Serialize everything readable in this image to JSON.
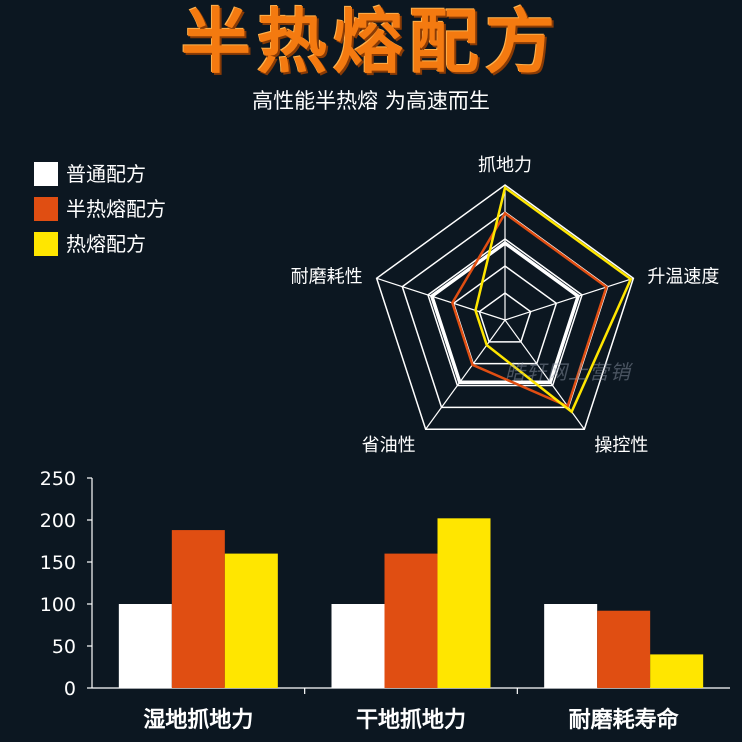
{
  "header": {
    "title": "半热熔配方",
    "subtitle": "高性能半热熔 为高速而生"
  },
  "legend": [
    {
      "label": "普通配方",
      "color": "#ffffff"
    },
    {
      "label": "半热熔配方",
      "color": "#e04e12"
    },
    {
      "label": "热熔配方",
      "color": "#ffe600"
    }
  ],
  "watermark": "皓轩网上营销",
  "colors": {
    "background": "#0c1721",
    "title": "#f47a10",
    "normal": "#ffffff",
    "semi_hot_melt": "#e04e12",
    "hot_melt": "#ffe600"
  },
  "chart_data": [
    {
      "type": "radar",
      "axes": [
        "抓地力",
        "升温速度",
        "操控性",
        "省油性",
        "耐磨耗性"
      ],
      "rings": 5,
      "series": [
        {
          "name": "普通配方",
          "color": "#ffffff",
          "values": [
            0.57,
            0.57,
            0.57,
            0.57,
            0.57
          ]
        },
        {
          "name": "半热熔配方",
          "color": "#e04e12",
          "values": [
            0.79,
            0.79,
            0.79,
            0.41,
            0.41
          ]
        },
        {
          "name": "热熔配方",
          "color": "#ffe600",
          "values": [
            0.98,
            0.98,
            0.84,
            0.23,
            0.23
          ]
        }
      ]
    },
    {
      "type": "bar",
      "categories": [
        "湿地抓地力",
        "干地抓地力",
        "耐磨耗寿命"
      ],
      "series": [
        {
          "name": "普通配方",
          "color": "#ffffff",
          "values": [
            100,
            100,
            100
          ]
        },
        {
          "name": "半热熔配方",
          "color": "#e04e12",
          "values": [
            188,
            160,
            92
          ]
        },
        {
          "name": "热熔配方",
          "color": "#ffe600",
          "values": [
            160,
            202,
            40
          ]
        }
      ],
      "ylim": [
        0,
        250
      ],
      "yticks": [
        "0",
        "50",
        "100",
        "150",
        "200",
        "250"
      ],
      "grid": false
    }
  ]
}
